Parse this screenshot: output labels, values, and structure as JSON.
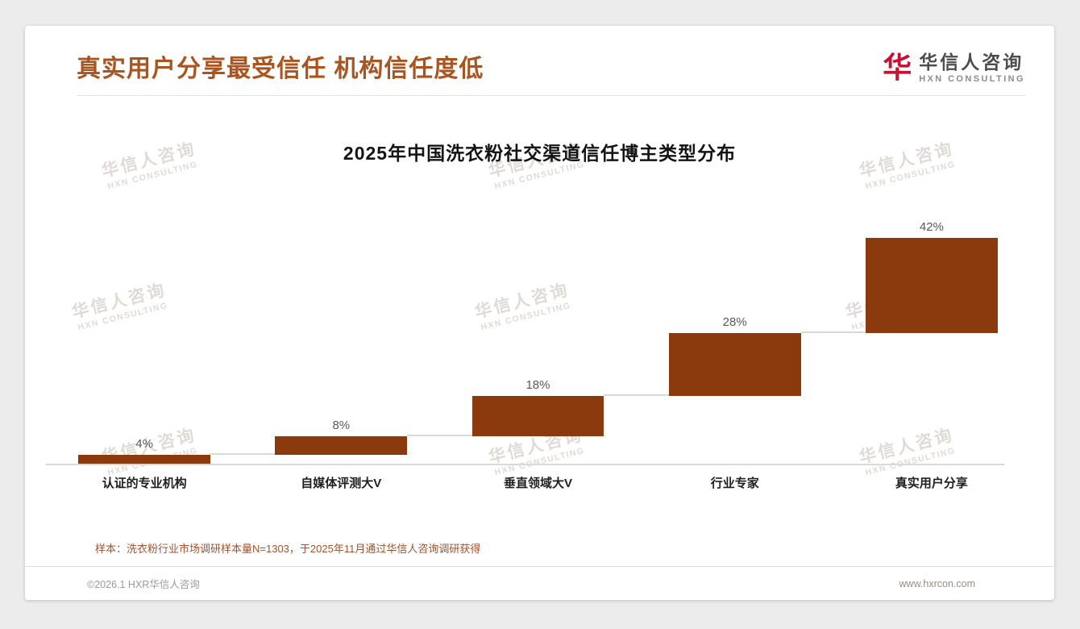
{
  "header": {
    "title": "真实用户分享最受信任 机构信任度低",
    "logo": {
      "mark": "华",
      "name": "华信人咨询",
      "subtitle": "HXN CONSULTING"
    }
  },
  "chart_data": {
    "type": "bar",
    "variant": "waterfall-steps",
    "title": "2025年中国洗衣粉社交渠道信任博主类型分布",
    "categories": [
      "认证的专业机构",
      "自媒体评测大V",
      "垂直领域大V",
      "行业专家",
      "真实用户分享"
    ],
    "values": [
      4,
      8,
      18,
      28,
      42
    ],
    "value_labels": [
      "4%",
      "8%",
      "18%",
      "28%",
      "42%"
    ],
    "cumulative_starts": [
      0,
      4,
      12,
      30,
      58
    ],
    "ylim": [
      0,
      100
    ],
    "bar_color": "#8B3A0E",
    "connector_color": "#d9d9d9",
    "grid": false,
    "legend": "none"
  },
  "footnote": "样本：洗衣粉行业市场调研样本量N=1303，于2025年11月通过华信人咨询调研获得",
  "footer": {
    "left": "©2026.1 HXR华信人咨询",
    "right": "www.hxrcon.com"
  },
  "watermark": {
    "line1": "华信人咨询",
    "line2": "HXN CONSULTING"
  }
}
